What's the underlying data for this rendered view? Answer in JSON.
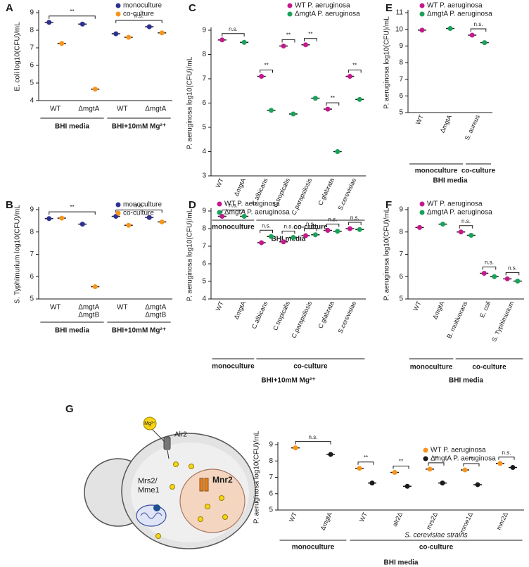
{
  "chart_data": [
    {
      "type": "dot",
      "panel": "A",
      "ylabel": "E. coli log10(CFU)/mL",
      "categories": [
        "WT",
        "ΔmgtA",
        "WT",
        "ΔmgtA"
      ],
      "series": [
        {
          "name": "monoculture",
          "color": "#2e3192",
          "values": [
            8.45,
            8.35,
            7.8,
            8.2
          ]
        },
        {
          "name": "co-culture",
          "color": "#f7941d",
          "values": [
            7.25,
            4.65,
            7.6,
            7.85
          ]
        }
      ],
      "ylim": [
        4,
        9
      ],
      "yticks": [
        4,
        5,
        6,
        7,
        8,
        9
      ],
      "annotations": [
        "**",
        "n.s."
      ],
      "groups": [
        "BHI media",
        "BHI+10mM Mg²⁺"
      ]
    },
    {
      "type": "dot",
      "panel": "B",
      "ylabel": "S. Typhimurium log10(CFU)/mL",
      "categories": [
        "WT",
        [
          "ΔmgtA",
          "ΔmgtB"
        ],
        "WT",
        [
          "ΔmgtA",
          "ΔmgtB"
        ]
      ],
      "series": [
        {
          "name": "monoculture",
          "color": "#2e3192",
          "values": [
            8.6,
            8.35,
            8.7,
            8.65
          ]
        },
        {
          "name": "co-culture",
          "color": "#f7941d",
          "values": [
            8.62,
            5.55,
            8.3,
            8.45
          ]
        }
      ],
      "ylim": [
        5,
        9
      ],
      "yticks": [
        5,
        6,
        7,
        8,
        9
      ],
      "annotations": [
        "**",
        "n.s."
      ],
      "groups": [
        "BHI media",
        "BHI+10mM Mg²⁺"
      ]
    },
    {
      "type": "dot",
      "panel": "C",
      "ylabel": "P. aeruginosa log10(CFU)/mL",
      "categories": [
        "WT",
        "ΔmgtA",
        "C.albicans",
        "C.tropicalis",
        "C.parapsilosis",
        "C.glabrata",
        "S.cerevisiae"
      ],
      "series": [
        {
          "name": "WT P. aeruginosa",
          "color": "#c4198b",
          "values": [
            8.6,
            null,
            7.1,
            8.35,
            8.4,
            5.75,
            7.1
          ]
        },
        {
          "name": "ΔmgtA P. aeruginosa",
          "color": "#1aa15a",
          "values": [
            null,
            8.5,
            5.7,
            5.55,
            6.2,
            4.0,
            6.15
          ]
        }
      ],
      "ylim": [
        3,
        9
      ],
      "yticks": [
        3,
        4,
        5,
        6,
        7,
        8,
        9
      ],
      "annotations": [
        "n.s.",
        "**",
        "**",
        "**",
        "**",
        "**"
      ],
      "groups": [
        "monoculture",
        "co-culture"
      ],
      "media": "BHI media"
    },
    {
      "type": "dot",
      "panel": "D",
      "ylabel": "P. aeruginosa log10(CFU)/mL",
      "categories": [
        "WT",
        "ΔmgtA",
        "C.albicans",
        "C.tropicalis",
        "C.parapsilosis",
        "C.glabrata",
        "S.cerevisiae"
      ],
      "series": [
        {
          "name": "WT P. aeruginosa",
          "color": "#c4198b",
          "values": [
            8.7,
            null,
            7.2,
            7.25,
            7.6,
            7.9,
            8.0
          ]
        },
        {
          "name": "ΔmgtA P. aeruginosa",
          "color": "#1aa15a",
          "values": [
            null,
            8.7,
            7.55,
            7.5,
            7.65,
            7.85,
            7.95
          ]
        }
      ],
      "ylim": [
        4,
        9
      ],
      "yticks": [
        4,
        5,
        6,
        7,
        8,
        9
      ],
      "annotations": [
        "n.s.",
        "n.s.",
        "n.s.",
        "n.s.",
        "n.s.",
        "n.s."
      ],
      "groups": [
        "monoculture",
        "co-culture"
      ],
      "media": "BHI+10mM Mg²⁺"
    },
    {
      "type": "dot",
      "panel": "E",
      "ylabel": "P. aeruginosa log10(CFU)/mL",
      "categories": [
        "WT",
        "ΔmgtA",
        "S. aureus"
      ],
      "series": [
        {
          "name": "WT P. aeruginosa",
          "color": "#c4198b",
          "values": [
            9.95,
            null,
            9.65
          ]
        },
        {
          "name": "ΔmgtA P. aeruginosa",
          "color": "#1aa15a",
          "values": [
            null,
            10.05,
            9.2
          ]
        }
      ],
      "ylim": [
        5,
        11
      ],
      "yticks": [
        5,
        6,
        7,
        8,
        9,
        10,
        11
      ],
      "annotations": [
        "n.s."
      ],
      "groups": [
        "monoculture",
        "co-culture"
      ],
      "media": "BHI media"
    },
    {
      "type": "dot",
      "panel": "F",
      "ylabel": "P. aeruginosa log10(CFU)/mL",
      "categories": [
        "WT",
        "ΔmgtA",
        "B. multivorans",
        "E. coli",
        "S. Typhimurium"
      ],
      "series": [
        {
          "name": "WT P. aeruginosa",
          "color": "#c4198b",
          "values": [
            8.2,
            null,
            8.0,
            6.15,
            5.9
          ]
        },
        {
          "name": "ΔmgtA P. aeruginosa",
          "color": "#1aa15a",
          "values": [
            null,
            8.35,
            7.85,
            6.0,
            5.8
          ]
        }
      ],
      "ylim": [
        5,
        9
      ],
      "yticks": [
        5,
        6,
        7,
        8,
        9
      ],
      "annotations": [
        "n.s.",
        "n.s.",
        "n.s."
      ],
      "groups": [
        "monoculture",
        "co-culture"
      ],
      "media": "BHI media"
    },
    {
      "type": "dot",
      "panel": "G",
      "ylabel": "P. aeruginosa log10(CFU)/mL",
      "categories": [
        "WT",
        "ΔmgtA",
        "WT",
        "alr2Δ",
        "mrs2Δ",
        "mme1Δ",
        "mnr2Δ"
      ],
      "series": [
        {
          "name": "WT P. aeruginosa",
          "color": "#f7941d",
          "values": [
            8.8,
            null,
            7.55,
            7.3,
            7.5,
            7.45,
            7.85
          ]
        },
        {
          "name": "ΔmgtA P. aeruginosa",
          "color": "#1a1a1a",
          "values": [
            null,
            8.4,
            6.65,
            6.45,
            6.65,
            6.55,
            7.6
          ]
        }
      ],
      "ylim": [
        5,
        9
      ],
      "yticks": [
        5,
        6,
        7,
        8,
        9
      ],
      "annotations": [
        "n.s.",
        "**",
        "**",
        "**",
        "**",
        "n.s."
      ],
      "groups": [
        "monoculture",
        "co-culture"
      ],
      "subgroup": "S. cerevisiae strains",
      "media": "BHI media"
    }
  ],
  "diagram": {
    "labels": [
      "Mg²⁺",
      "Alr2",
      "Mrs2/",
      "Mme1",
      "Mnr2"
    ]
  }
}
